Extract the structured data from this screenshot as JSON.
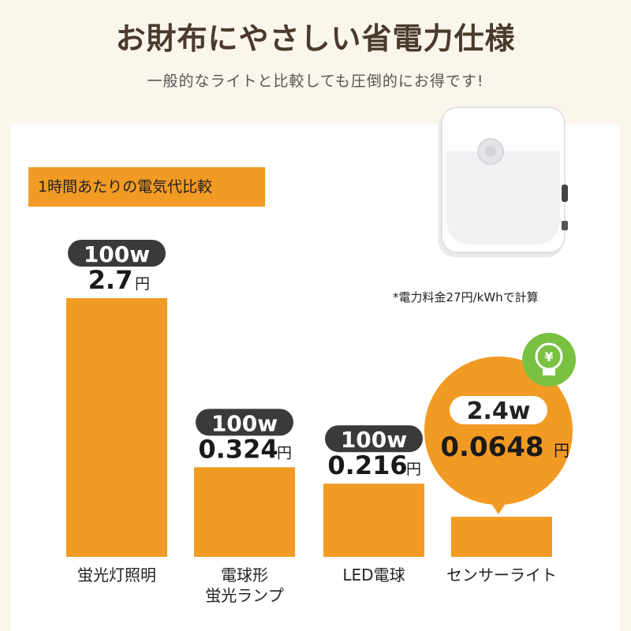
{
  "title": "お財布にやさしい省電力仕様",
  "subtitle": "一般的なライトと比較しても圧倒的にお得です!",
  "header_tag": "1時間あたりの電気代比較",
  "note": "*電力料金27円/kWhで計算",
  "colors": {
    "bar": "#f19a24",
    "pill": "#3a3a3a",
    "background": "#fbf6ec",
    "badge_green": "#7ac142"
  },
  "icons": {
    "badge": "yen-lightbulb-icon",
    "product": "motion-sensor-light-device"
  },
  "chart_data": {
    "type": "bar",
    "unit": "円",
    "categories": [
      [
        "蛍光灯照明"
      ],
      [
        "電球形",
        "蛍光ランプ"
      ],
      [
        "LED電球"
      ],
      [
        "センサーライト"
      ]
    ],
    "wattages": [
      "100w",
      "100w",
      "100w",
      "2.4w"
    ],
    "values": [
      2.7,
      0.324,
      0.216,
      0.0648
    ],
    "value_labels": [
      "2.7",
      "0.324",
      "0.216",
      "0.0648"
    ],
    "highlight_index": 3
  }
}
